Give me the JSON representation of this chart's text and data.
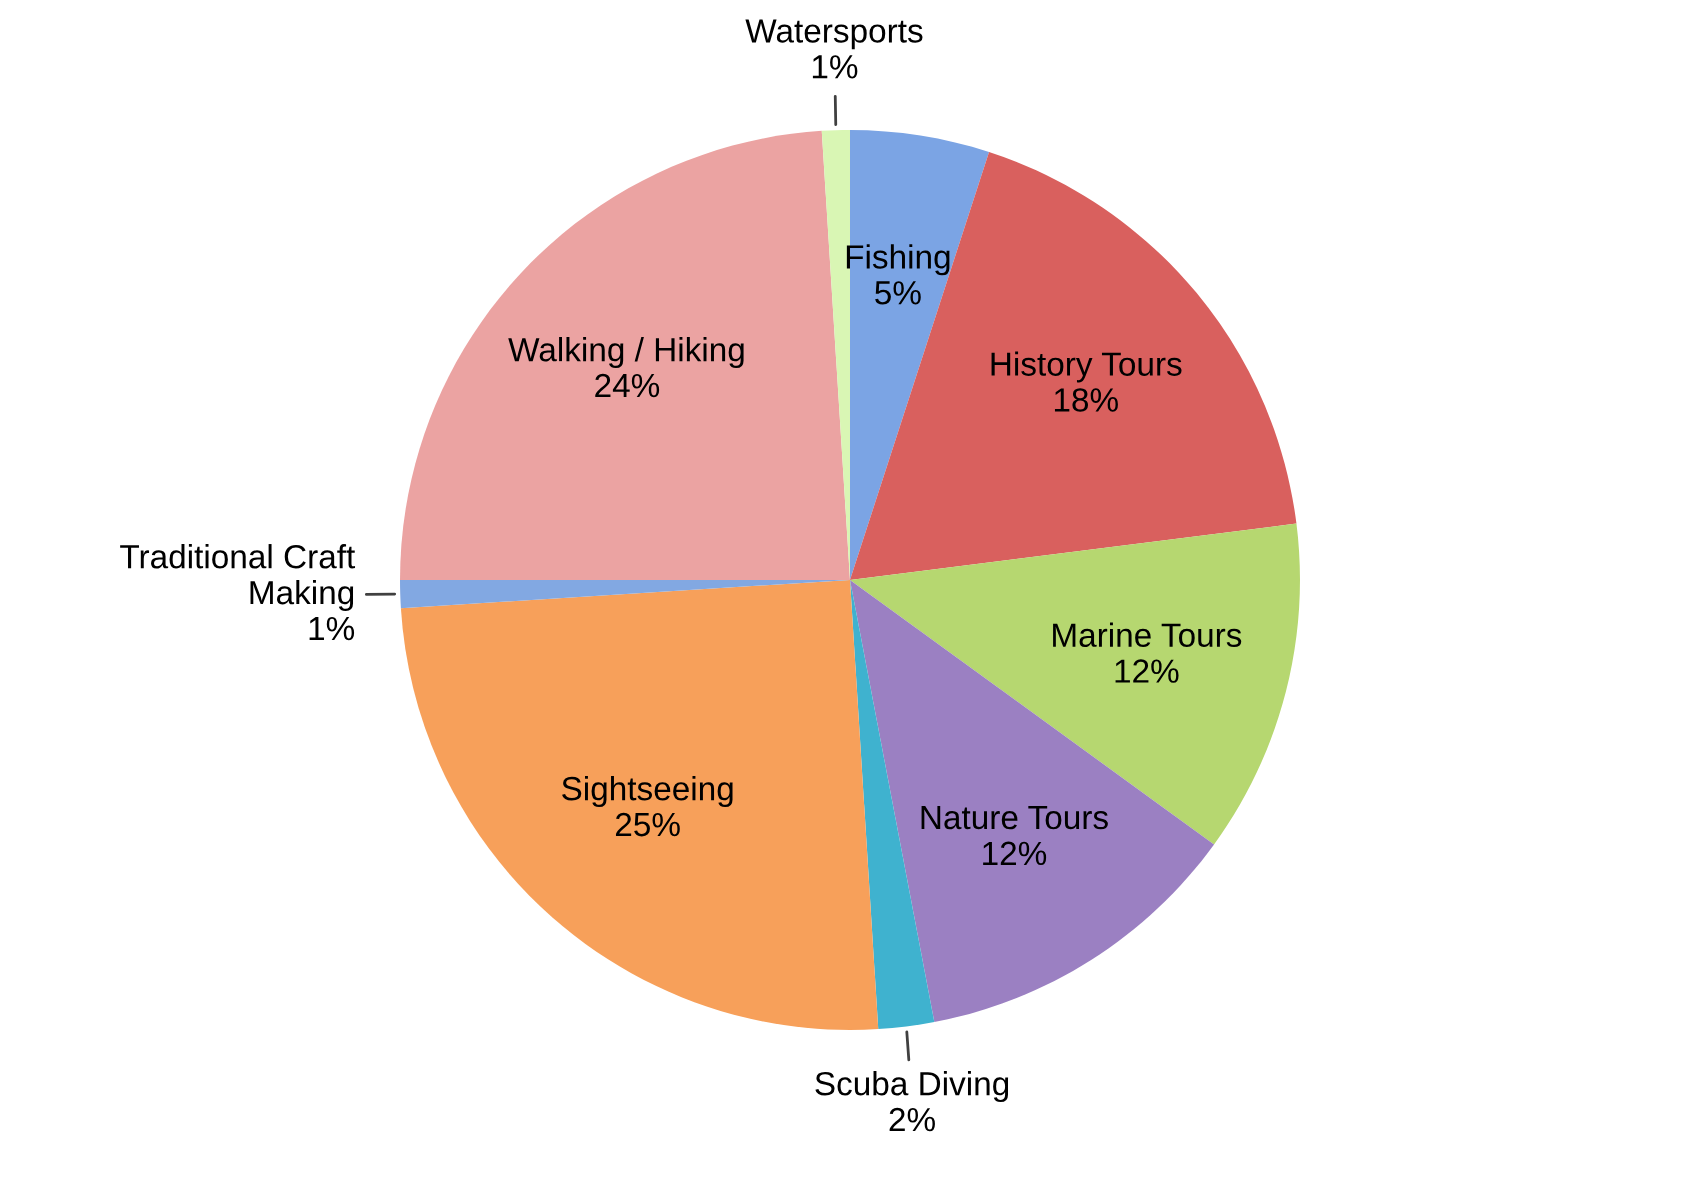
{
  "chart_data": {
    "type": "pie",
    "categories": [
      "Fishing",
      "History Tours",
      "Marine Tours",
      "Nature Tours",
      "Scuba Diving",
      "Sightseeing",
      "Traditional Craft Making",
      "Walking / Hiking",
      "Watersports"
    ],
    "values": [
      5,
      18,
      12,
      12,
      2,
      25,
      1,
      24,
      1
    ],
    "value_labels": [
      "5%",
      "18%",
      "12%",
      "12%",
      "2%",
      "25%",
      "1%",
      "24%",
      "1%"
    ],
    "colors": [
      "#7ba4e4",
      "#d9605e",
      "#b6d770",
      "#9b80c2",
      "#3fb2cf",
      "#f7a05a",
      "#82a8e2",
      "#eba3a2",
      "#d9f6b4"
    ],
    "legend": false
  }
}
